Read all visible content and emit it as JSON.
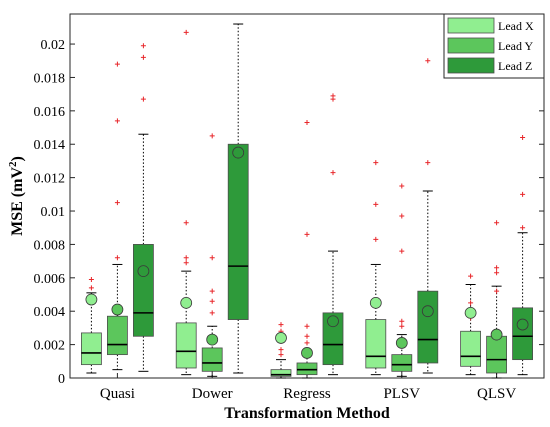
{
  "chart_data": {
    "type": "box",
    "xlabel": "Transformation Method",
    "ylabel": "MSE (mV",
    "ylabel_sup": "2",
    "ylabel_suffix": ")",
    "ylim": [
      0,
      0.0218
    ],
    "yticks": [
      0,
      0.002,
      0.004,
      0.006,
      0.008,
      0.01,
      0.012,
      0.014,
      0.016,
      0.018,
      0.02
    ],
    "ytick_labels": [
      "0",
      "0.002",
      "0.004",
      "0.006",
      "0.008",
      "0.01",
      "0.012",
      "0.014",
      "0.016",
      "0.018",
      "0.02"
    ],
    "categories": [
      "Quasi",
      "Dower",
      "Regress",
      "PLSV",
      "QLSV"
    ],
    "legend_position": "top-right",
    "series": [
      {
        "name": "Lead X",
        "color": "#90ee90",
        "stats": [
          {
            "q1": 0.0008,
            "median": 0.0015,
            "q3": 0.0027,
            "wlo": 0.0003,
            "whi": 0.0051,
            "mean": 0.0047,
            "outliers": [
              0.0059,
              0.0054
            ]
          },
          {
            "q1": 0.0006,
            "median": 0.0016,
            "q3": 0.0033,
            "wlo": 0.0002,
            "whi": 0.0064,
            "mean": 0.0045,
            "outliers": [
              0.0207,
              0.0093,
              0.0072,
              0.0069
            ]
          },
          {
            "q1": 0.0001,
            "median": 0.0002,
            "q3": 0.0005,
            "wlo": 0.0,
            "whi": 0.0011,
            "mean": 0.0024,
            "outliers": [
              0.0032,
              0.0028,
              0.0022,
              0.0017,
              0.0014
            ]
          },
          {
            "q1": 0.0006,
            "median": 0.0013,
            "q3": 0.0035,
            "wlo": 0.0002,
            "whi": 0.0068,
            "mean": 0.0045,
            "outliers": [
              0.0129,
              0.0104,
              0.0083
            ]
          },
          {
            "q1": 0.0007,
            "median": 0.0013,
            "q3": 0.0028,
            "wlo": 0.0002,
            "whi": 0.0056,
            "mean": 0.0039,
            "outliers": [
              0.0061,
              0.0045,
              0.0036
            ]
          }
        ]
      },
      {
        "name": "Lead Y",
        "color": "#5cc65c",
        "stats": [
          {
            "q1": 0.0014,
            "median": 0.002,
            "q3": 0.0037,
            "wlo": 0.0005,
            "whi": 0.0068,
            "mean": 0.0041,
            "outliers": [
              0.0188,
              0.0154,
              0.0105,
              0.0072
            ]
          },
          {
            "q1": 0.0004,
            "median": 0.0009,
            "q3": 0.0018,
            "wlo": 0.0001,
            "whi": 0.0031,
            "mean": 0.0023,
            "outliers": [
              0.0145,
              0.0072,
              0.0052,
              0.0046,
              0.0039
            ]
          },
          {
            "q1": 0.0002,
            "median": 0.0005,
            "q3": 0.0009,
            "wlo": 0.0,
            "whi": 0.0015,
            "mean": 0.0015,
            "outliers": [
              0.0153,
              0.0086,
              0.0031,
              0.0025,
              0.0021
            ]
          },
          {
            "q1": 0.0004,
            "median": 0.0008,
            "q3": 0.0014,
            "wlo": 0.0001,
            "whi": 0.0026,
            "mean": 0.0021,
            "outliers": [
              0.0115,
              0.0097,
              0.0076,
              0.0034,
              0.0031
            ]
          },
          {
            "q1": 0.0003,
            "median": 0.0011,
            "q3": 0.0025,
            "wlo": 0.0,
            "whi": 0.0055,
            "mean": 0.0026,
            "outliers": [
              0.0093,
              0.0066,
              0.0063,
              0.0052
            ]
          }
        ]
      },
      {
        "name": "Lead Z",
        "color": "#2e9a3a",
        "stats": [
          {
            "q1": 0.0025,
            "median": 0.0039,
            "q3": 0.008,
            "wlo": 0.0004,
            "whi": 0.0146,
            "mean": 0.0064,
            "outliers": [
              0.0199,
              0.0192,
              0.0167
            ]
          },
          {
            "q1": 0.0035,
            "median": 0.0067,
            "q3": 0.014,
            "wlo": 0.0003,
            "whi": 0.0212,
            "mean": 0.0135,
            "outliers": []
          },
          {
            "q1": 0.0008,
            "median": 0.002,
            "q3": 0.0039,
            "wlo": 0.0002,
            "whi": 0.0076,
            "mean": 0.0034,
            "outliers": [
              0.0169,
              0.0167,
              0.0123
            ]
          },
          {
            "q1": 0.0009,
            "median": 0.0023,
            "q3": 0.0052,
            "wlo": 0.0003,
            "whi": 0.0112,
            "mean": 0.004,
            "outliers": [
              0.019,
              0.0129
            ]
          },
          {
            "q1": 0.0011,
            "median": 0.0025,
            "q3": 0.0042,
            "wlo": 0.0002,
            "whi": 0.0087,
            "mean": 0.0032,
            "outliers": [
              0.0144,
              0.011,
              0.009
            ]
          }
        ]
      }
    ]
  }
}
